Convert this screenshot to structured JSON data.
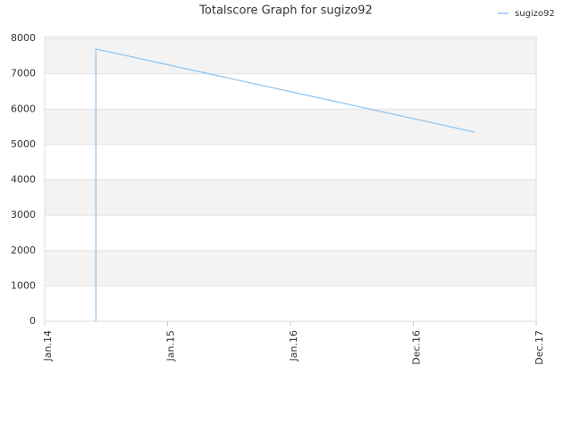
{
  "chart_data": {
    "type": "line",
    "title": "Totalscore Graph for sugizo92",
    "x": [
      "2014-06",
      "2014-06",
      "2017-06"
    ],
    "series": [
      {
        "name": "sugizo92",
        "color": "#92c5f0",
        "values": [
          0,
          7700,
          5350
        ]
      }
    ],
    "xlim": [
      "2014-01",
      "2017-12"
    ],
    "xticks": [
      {
        "value": "2014-01",
        "label": "Jan.14"
      },
      {
        "value": "2015-01",
        "label": "Jan.15"
      },
      {
        "value": "2016-01",
        "label": "Jan.16"
      },
      {
        "value": "2016-12",
        "label": "Dec.16"
      },
      {
        "value": "2017-12",
        "label": "Dec.17"
      }
    ],
    "ylim": [
      0,
      8000
    ],
    "yticks": [
      0,
      1000,
      2000,
      3000,
      4000,
      5000,
      6000,
      7000,
      8000
    ],
    "grid": true,
    "legend": "top-right"
  }
}
